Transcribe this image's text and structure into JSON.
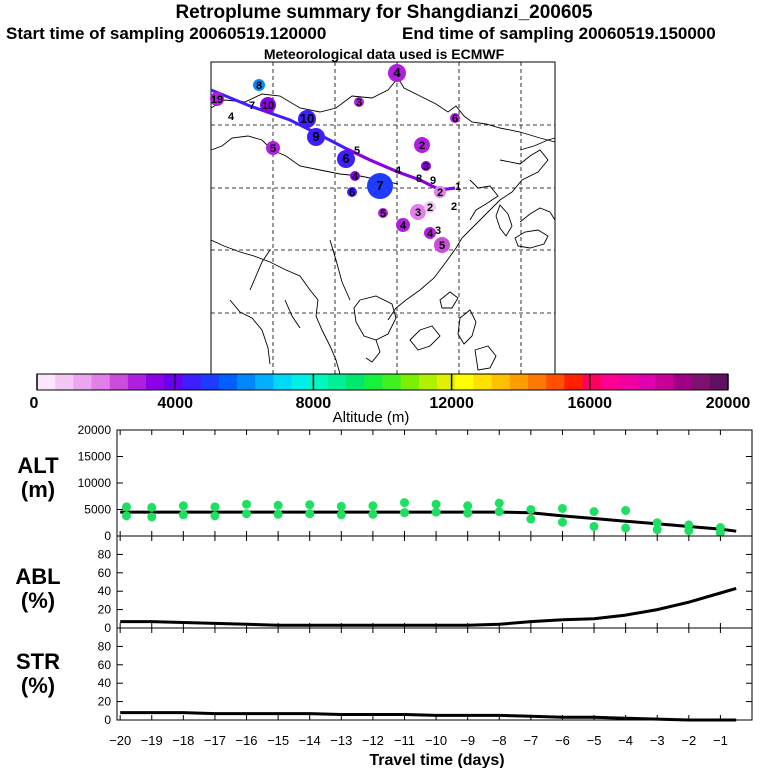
{
  "header": {
    "title": "Retroplume summary for Shangdianzi_200605",
    "start": "Start time of sampling 20060519.120000",
    "end": "End time of sampling 20060519.150000",
    "met": "Meteorological data used is ECMWF"
  },
  "colorbar": {
    "ticks": [
      "0",
      "4000",
      "8000",
      "12000",
      "16000",
      "20000"
    ],
    "label": "Altitude (m)",
    "colors": [
      "#fbe6fb",
      "#f4c8f4",
      "#eaa6ee",
      "#e080e8",
      "#cc4cdc",
      "#b01ee0",
      "#8c00e8",
      "#6a00f0",
      "#3c1eff",
      "#1e3cff",
      "#0060ff",
      "#0088ff",
      "#00b0ff",
      "#00d8f8",
      "#00f0e8",
      "#00f8c0",
      "#00f098",
      "#00e870",
      "#18f040",
      "#40f020",
      "#78f000",
      "#b0f000",
      "#e0f000",
      "#ffff00",
      "#ffe000",
      "#ffc000",
      "#ff9c00",
      "#ff7800",
      "#ff5000",
      "#ff2000",
      "#ff0060",
      "#ff0090",
      "#f000a0",
      "#e000b0",
      "#c80098",
      "#a00088",
      "#801070",
      "#601060"
    ]
  },
  "map": {
    "numbers": [
      {
        "t": "4",
        "c": "#b01ee0"
      },
      {
        "t": "8",
        "c": "#0088ff"
      },
      {
        "t": "19",
        "c": "#b01ee0"
      },
      {
        "t": "7",
        "c": "#8c00e8"
      },
      {
        "t": "10",
        "c": "#8c00e8"
      },
      {
        "t": "3",
        "c": "#b01ee0"
      },
      {
        "t": "4",
        "c": "#000000"
      },
      {
        "t": "10",
        "c": "#3c1eff"
      },
      {
        "t": "9",
        "c": "#3c1eff"
      },
      {
        "t": "5",
        "c": "#b01ee0"
      },
      {
        "t": "5",
        "c": "#000000"
      },
      {
        "t": "2",
        "c": "#b01ee0"
      },
      {
        "t": "6",
        "c": "#3c1eff"
      },
      {
        "t": "3",
        "c": "#8c00e8"
      },
      {
        "t": "4",
        "c": "#000000"
      },
      {
        "t": "8",
        "c": "#000000"
      },
      {
        "t": "9",
        "c": "#000000"
      },
      {
        "t": "4",
        "c": "#8c00e8"
      },
      {
        "t": "7",
        "c": "#1e3cff"
      },
      {
        "t": "1",
        "c": "#000000"
      },
      {
        "t": "2",
        "c": "#e080e8"
      },
      {
        "t": "6",
        "c": "#3c1eff"
      },
      {
        "t": "2",
        "c": "#000000"
      },
      {
        "t": "3",
        "c": "#e080e8"
      },
      {
        "t": "2",
        "c": "#f4c8f4"
      },
      {
        "t": "5",
        "c": "#b01ee0"
      },
      {
        "t": "4",
        "c": "#b01ee0"
      },
      {
        "t": "6",
        "c": "#b01ee0"
      },
      {
        "t": "3",
        "c": "#000000"
      },
      {
        "t": "5",
        "c": "#cc4cdc"
      },
      {
        "t": "4",
        "c": "#b01ee0"
      }
    ]
  },
  "panels": [
    {
      "label": "ALT\n(m)",
      "ylim": [
        0,
        20000
      ],
      "yticks": [
        "0",
        "5000",
        "10000",
        "15000",
        "20000"
      ]
    },
    {
      "label": "ABL\n(%)",
      "ylim": [
        0,
        100
      ],
      "yticks": [
        "0",
        "20",
        "40",
        "60",
        "80"
      ]
    },
    {
      "label": "STR\n(%)",
      "ylim": [
        0,
        100
      ],
      "yticks": [
        "0",
        "20",
        "40",
        "60",
        "80"
      ]
    }
  ],
  "xaxis": {
    "label": "Travel time (days)",
    "ticks": [
      "−20",
      "−19",
      "−18",
      "−17",
      "−16",
      "−15",
      "−14",
      "−13",
      "−12",
      "−11",
      "−10",
      "−9",
      "−8",
      "−7",
      "−6",
      "−5",
      "−4",
      "−3",
      "−2",
      "−1"
    ]
  },
  "chart_data": [
    {
      "type": "line",
      "title": "ALT",
      "xlabel": "Travel time (days)",
      "ylabel": "ALT (m)",
      "xlim": [
        -20.1,
        0
      ],
      "ylim": [
        0,
        20000
      ],
      "series": [
        {
          "name": "mean altitude",
          "x": [
            -20,
            -19,
            -18,
            -17,
            -16,
            -15,
            -14,
            -13,
            -12,
            -11,
            -10,
            -9,
            -8,
            -7,
            -6,
            -5,
            -4,
            -3,
            -2,
            -1,
            -0.5
          ],
          "y": [
            4500,
            4500,
            4500,
            4500,
            4500,
            4500,
            4500,
            4500,
            4500,
            4500,
            4500,
            4500,
            4500,
            4400,
            3800,
            3300,
            2800,
            2300,
            1800,
            1300,
            900
          ]
        },
        {
          "name": "particles",
          "x": [
            -19.8,
            -19.8,
            -19,
            -19,
            -18,
            -18,
            -17,
            -17,
            -16,
            -16,
            -15,
            -15,
            -14,
            -14,
            -13,
            -13,
            -12,
            -12,
            -11,
            -11,
            -10,
            -10,
            -9,
            -9,
            -8,
            -8,
            -7,
            -7,
            -6,
            -6,
            -5,
            -5,
            -4,
            -4,
            -3,
            -3,
            -2,
            -2,
            -1,
            -1
          ],
          "y": [
            5500,
            3800,
            5400,
            3600,
            5700,
            4000,
            5500,
            3800,
            6000,
            4200,
            5800,
            4100,
            5900,
            4200,
            5600,
            4000,
            5700,
            4100,
            6300,
            4400,
            6000,
            4500,
            5700,
            4300,
            6200,
            4600,
            5000,
            3200,
            5200,
            2600,
            4600,
            1800,
            4800,
            1500,
            2500,
            1200,
            2100,
            1000,
            1600,
            600
          ]
        }
      ]
    },
    {
      "type": "line",
      "title": "ABL",
      "xlabel": "Travel time (days)",
      "ylabel": "ABL (%)",
      "xlim": [
        -20.1,
        0
      ],
      "ylim": [
        0,
        100
      ],
      "series": [
        {
          "name": "ABL",
          "x": [
            -20,
            -19,
            -18,
            -17,
            -16,
            -15,
            -14,
            -13,
            -12,
            -11,
            -10,
            -9,
            -8,
            -7,
            -6,
            -5,
            -4,
            -3,
            -2,
            -1,
            -0.5
          ],
          "y": [
            7,
            7,
            6,
            5,
            4,
            3,
            3,
            3,
            3,
            3,
            3,
            3,
            4,
            7,
            9,
            10,
            14,
            20,
            28,
            38,
            43
          ]
        }
      ]
    },
    {
      "type": "line",
      "title": "STR",
      "xlabel": "Travel time (days)",
      "ylabel": "STR (%)",
      "xlim": [
        -20.1,
        0
      ],
      "ylim": [
        0,
        100
      ],
      "series": [
        {
          "name": "STR",
          "x": [
            -20,
            -19,
            -18,
            -17,
            -16,
            -15,
            -14,
            -13,
            -12,
            -11,
            -10,
            -9,
            -8,
            -7,
            -6,
            -5,
            -4,
            -3,
            -2,
            -1,
            -0.5
          ],
          "y": [
            8,
            8,
            8,
            7,
            7,
            7,
            7,
            6,
            6,
            6,
            5,
            5,
            5,
            4,
            3,
            3,
            2,
            1,
            0,
            0,
            0
          ]
        }
      ]
    }
  ]
}
